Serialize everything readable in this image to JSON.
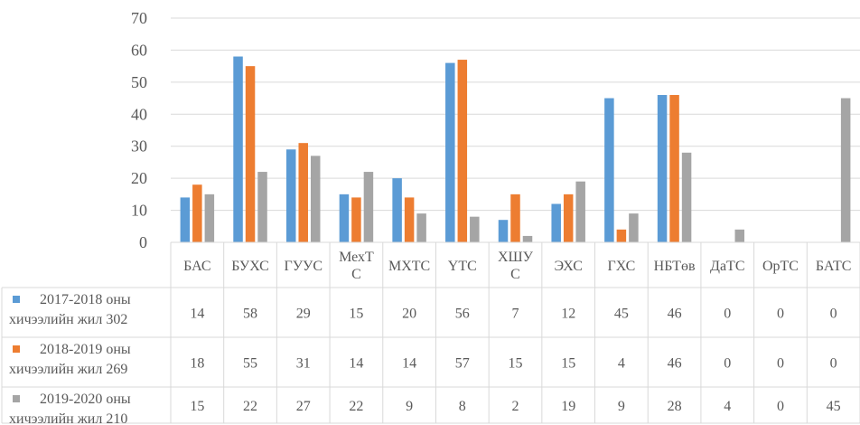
{
  "chart_data": {
    "type": "bar",
    "categories": [
      "БАС",
      "БУХС",
      "ГУУС",
      "МехТС",
      "МХТС",
      "ҮТС",
      "ХШУС",
      "ЭХС",
      "ГХС",
      "НБТөв",
      "ДаТС",
      "ОрТС",
      "БАТС"
    ],
    "category_lines": [
      [
        "БАС"
      ],
      [
        "БУХС"
      ],
      [
        "ГУУС"
      ],
      [
        "МехТ",
        "С"
      ],
      [
        "МХТС"
      ],
      [
        "ҮТС"
      ],
      [
        "ХШУ",
        "С"
      ],
      [
        "ЭХС"
      ],
      [
        "ГХС"
      ],
      [
        "НБТөв"
      ],
      [
        "ДаТС"
      ],
      [
        "ОрТС"
      ],
      [
        "БАТС"
      ]
    ],
    "series": [
      {
        "name": "2017-2018 оны хичээлийн жил 302",
        "name_lines": [
          "2017-2018 оны",
          "хичээлийн жил 302"
        ],
        "color": "#5b9bd5",
        "values": [
          14,
          58,
          29,
          15,
          20,
          56,
          7,
          12,
          45,
          46,
          0,
          0,
          0
        ]
      },
      {
        "name": "2018-2019 оны хичээлийн жил 269",
        "name_lines": [
          "2018-2019 оны",
          "хичээлийн жил 269"
        ],
        "color": "#ed7d31",
        "values": [
          18,
          55,
          31,
          14,
          14,
          57,
          15,
          15,
          4,
          46,
          0,
          0,
          0
        ]
      },
      {
        "name": "2019-2020 оны хичээлийн жил 210",
        "name_lines": [
          "2019-2020 оны",
          "хичээлийн жил 210"
        ],
        "color": "#a5a5a5",
        "values": [
          15,
          22,
          27,
          22,
          9,
          8,
          2,
          19,
          9,
          28,
          4,
          0,
          45
        ]
      }
    ],
    "yticks": [
      0,
      10,
      20,
      30,
      40,
      50,
      60,
      70
    ],
    "ylim": [
      0,
      70
    ],
    "grid": true,
    "legend": "data-table-left",
    "gridline_color": "#d9d9d9"
  }
}
